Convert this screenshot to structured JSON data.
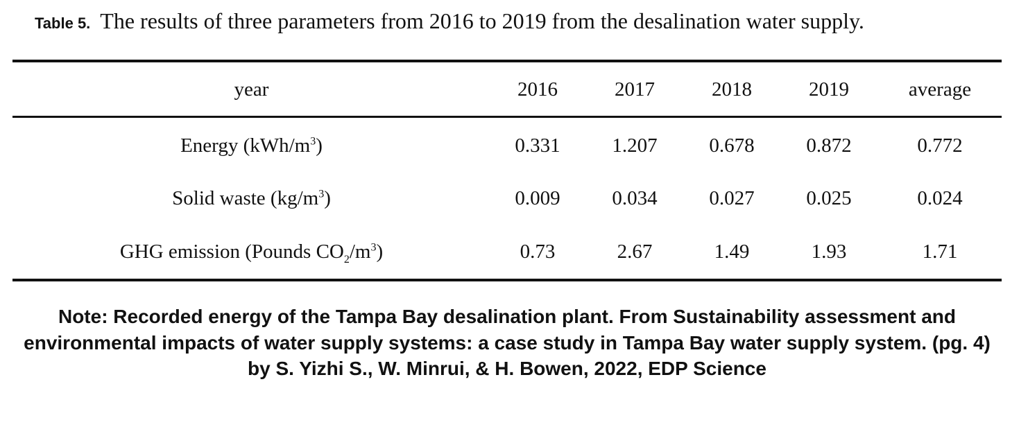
{
  "caption": {
    "label": "Table 5.",
    "text": "The results of three parameters from 2016 to 2019 from the desalination water supply."
  },
  "table": {
    "headers": [
      "year",
      "2016",
      "2017",
      "2018",
      "2019",
      "average"
    ],
    "rows": [
      {
        "param": {
          "pre": "Energy (kWh/m",
          "sup": "3",
          "post": ")"
        },
        "values": [
          "0.331",
          "1.207",
          "0.678",
          "0.872",
          "0.772"
        ]
      },
      {
        "param": {
          "pre": "Solid waste (kg/m",
          "sup": "3",
          "post": ")"
        },
        "values": [
          "0.009",
          "0.034",
          "0.027",
          "0.025",
          "0.024"
        ]
      },
      {
        "param": {
          "pre": "GHG emission (Pounds CO",
          "sub": "2",
          "mid": "/m",
          "sup": "3",
          "post": ")"
        },
        "values": [
          "0.73",
          "2.67",
          "1.49",
          "1.93",
          "1.71"
        ]
      }
    ]
  },
  "note": {
    "text": "Note: Recorded energy of the Tampa Bay desalination plant. From Sustainability assessment and environmental impacts of water supply systems: a case study in Tampa Bay water supply system. (pg. 4) by S. Yizhi S., W. Minrui, & H. Bowen, 2022, EDP Science"
  }
}
